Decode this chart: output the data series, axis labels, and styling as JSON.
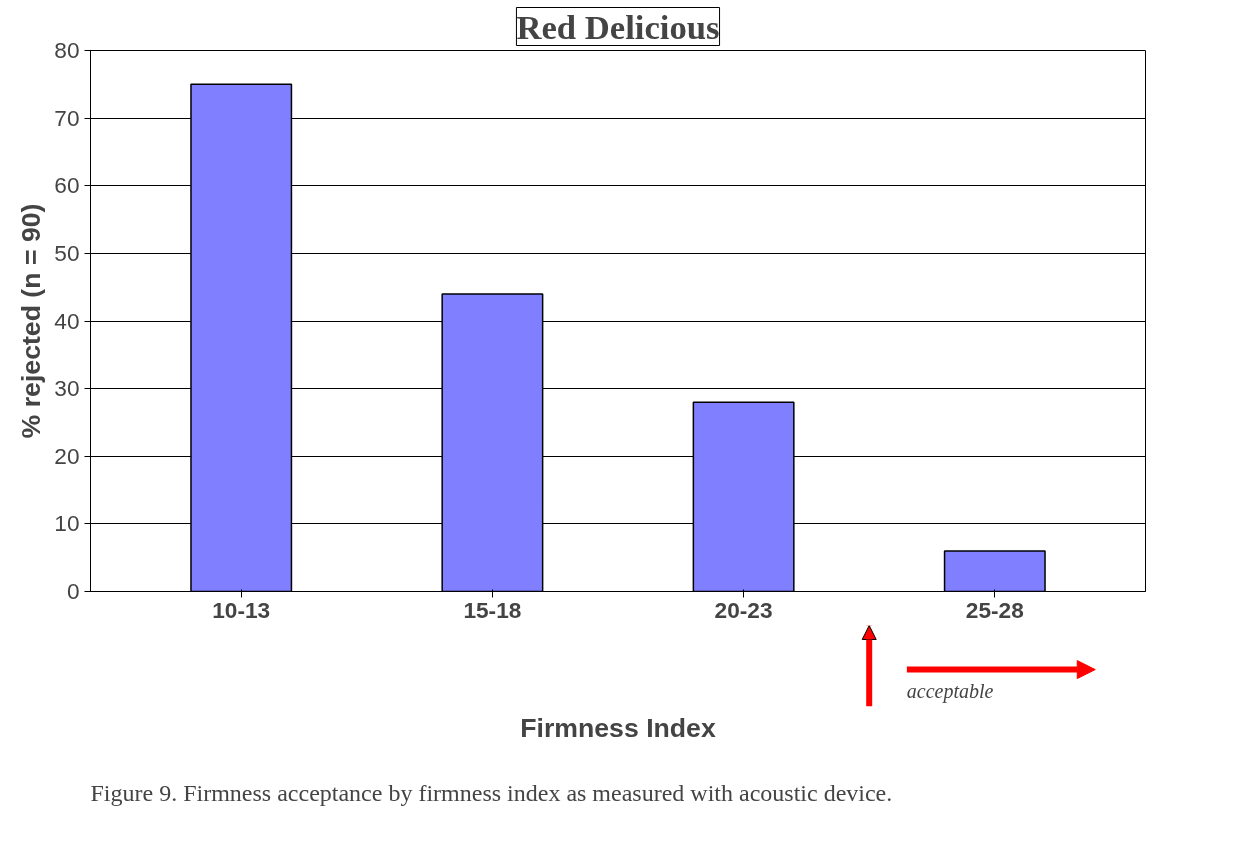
{
  "chart_data": {
    "type": "bar",
    "title": "Red Delicious",
    "xlabel": "Firmness Index",
    "ylabel": "% rejected (n = 90)",
    "categories": [
      "10-13",
      "15-18",
      "20-23",
      "25-28"
    ],
    "values": [
      75,
      44,
      28,
      6
    ],
    "color": "#7f7fff",
    "ylim": [
      0,
      80
    ],
    "yticks": [
      0,
      10,
      20,
      30,
      40,
      50,
      60,
      70,
      80
    ],
    "grid": "y",
    "annotations": [
      "acceptable",
      "Figure 9.   Firmness acceptance by firmness index as measured with acoustic device."
    ]
  }
}
